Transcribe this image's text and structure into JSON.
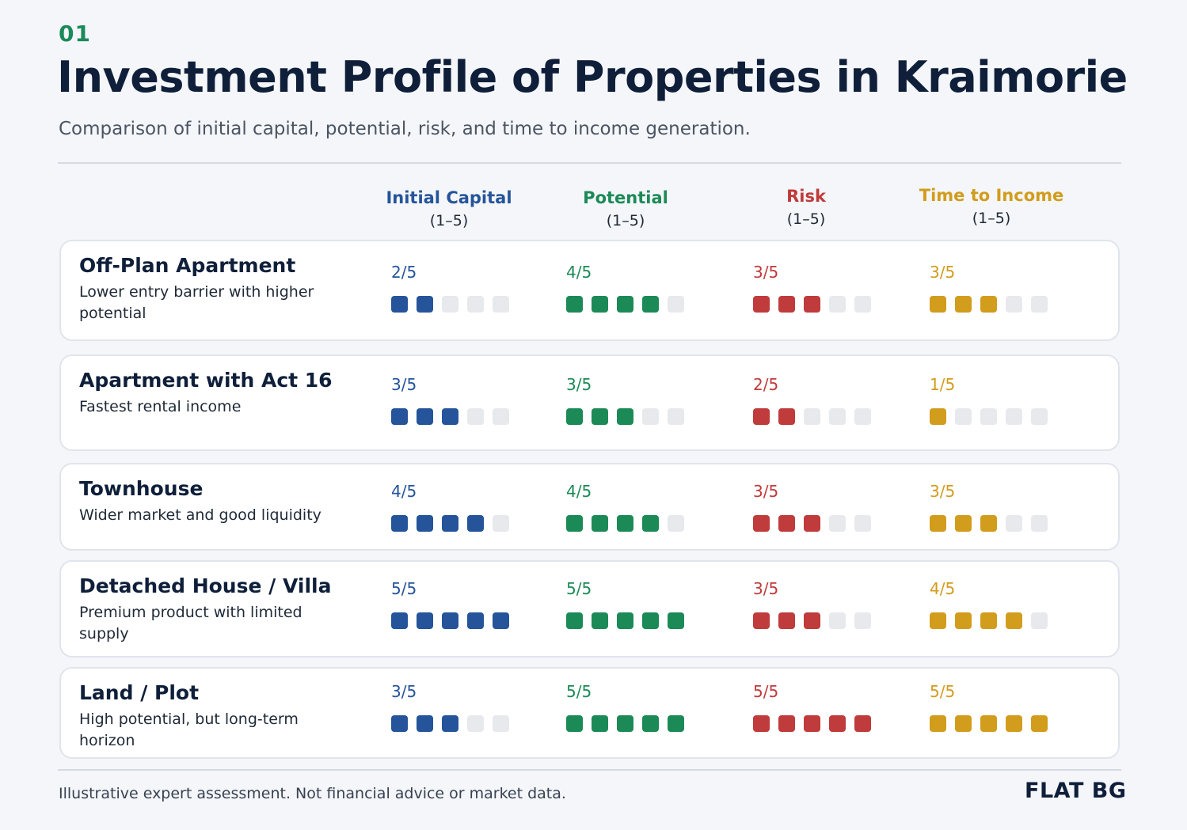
{
  "header": {
    "number": "01",
    "title": "Investment Profile of Properties in Kraimorie",
    "subtitle": "Comparison of initial capital, potential, risk, and time to income generation."
  },
  "colors": {
    "initial_capital": "#25549a",
    "potential": "#1c8a57",
    "risk": "#c03b3b",
    "time_to_income": "#d29c1c",
    "empty": "#e7e9ed"
  },
  "chart_data": {
    "type": "table",
    "max": 5,
    "columns": [
      {
        "key": "initial_capital",
        "name": "Initial Capital",
        "scale": "(1–5)"
      },
      {
        "key": "potential",
        "name": "Potential",
        "scale": "(1–5)"
      },
      {
        "key": "risk",
        "name": "Risk",
        "scale": "(1–5)"
      },
      {
        "key": "time_to_income",
        "name": "Time to Income",
        "scale": "(1–5)"
      }
    ],
    "rows": [
      {
        "name": "Off-Plan Apartment",
        "description": "Lower entry barrier with higher potential",
        "scores": [
          2,
          4,
          3,
          3
        ],
        "labels": [
          "2/5",
          "4/5",
          "3/5",
          "3/5"
        ]
      },
      {
        "name": "Apartment with Act 16",
        "description": "Fastest rental income",
        "scores": [
          3,
          3,
          2,
          1
        ],
        "labels": [
          "3/5",
          "3/5",
          "2/5",
          "1/5"
        ]
      },
      {
        "name": "Townhouse",
        "description": "Wider market and good liquidity",
        "scores": [
          4,
          4,
          3,
          3
        ],
        "labels": [
          "4/5",
          "4/5",
          "3/5",
          "3/5"
        ]
      },
      {
        "name": "Detached House / Villa",
        "description": "Premium product with limited supply",
        "scores": [
          5,
          5,
          3,
          4
        ],
        "labels": [
          "5/5",
          "5/5",
          "3/5",
          "4/5"
        ]
      },
      {
        "name": "Land / Plot",
        "description": "High potential, but long-term horizon",
        "scores": [
          3,
          5,
          5,
          5
        ],
        "labels": [
          "3/5",
          "5/5",
          "5/5",
          "5/5"
        ]
      }
    ]
  },
  "footer": {
    "note": "Illustrative expert assessment. Not financial advice or market data.",
    "brand": "FLAT BG"
  }
}
